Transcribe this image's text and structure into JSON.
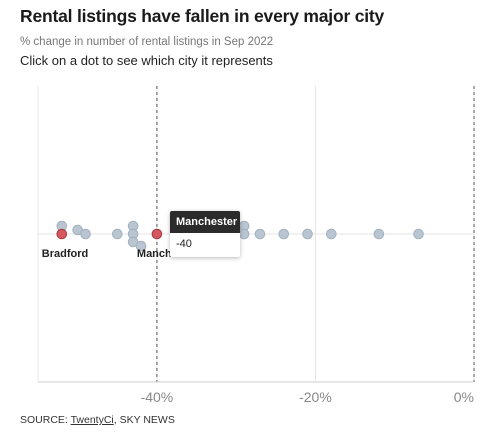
{
  "header": {
    "title": "Rental listings have fallen in every major city",
    "subtitle": "% change in number of rental listings in Sep 2022",
    "instruction": "Click on a dot to see which city it represents"
  },
  "chart_data": {
    "type": "scatter",
    "title": "Rental listings have fallen in every major city",
    "subtitle": "% change in number of rental listings in Sep 2022",
    "xlim": [
      -55,
      0
    ],
    "xticks": [
      {
        "value": -40,
        "label": "-40%"
      },
      {
        "value": -20,
        "label": "-20%"
      },
      {
        "value": 0,
        "label": "0%"
      }
    ],
    "grid": true,
    "reference_lines": [
      -40,
      0
    ],
    "points": [
      {
        "x": -52,
        "stack": -1
      },
      {
        "x": -52,
        "stack": 0,
        "highlighted": true,
        "label": "Bradford"
      },
      {
        "x": -50,
        "stack": -0.5
      },
      {
        "x": -49,
        "stack": 0
      },
      {
        "x": -45,
        "stack": 0
      },
      {
        "x": -43,
        "stack": -1
      },
      {
        "x": -43,
        "stack": 0
      },
      {
        "x": -43,
        "stack": 1
      },
      {
        "x": -42,
        "stack": 1.5
      },
      {
        "x": -40,
        "stack": 0,
        "highlighted": true,
        "label": "Manchester"
      },
      {
        "x": -29,
        "stack": -1
      },
      {
        "x": -29,
        "stack": 0
      },
      {
        "x": -27,
        "stack": 0
      },
      {
        "x": -24,
        "stack": 0
      },
      {
        "x": -21,
        "stack": 0
      },
      {
        "x": -18,
        "stack": 0
      },
      {
        "x": -12,
        "stack": 0
      },
      {
        "x": -7,
        "stack": 0
      }
    ],
    "colors": {
      "point": "#b9c6d2",
      "point_stroke": "#a3b1be",
      "highlight": "#d6575e",
      "highlight_stroke": "#a33a41",
      "grid": "#e6e6e6",
      "reference": "#555555",
      "tick_label": "#888888"
    }
  },
  "tooltip": {
    "city": "Manchester",
    "value": "-40"
  },
  "footer": {
    "source_prefix": "SOURCE: ",
    "source_link": "TwentyCi",
    "source_suffix": ", SKY NEWS"
  }
}
